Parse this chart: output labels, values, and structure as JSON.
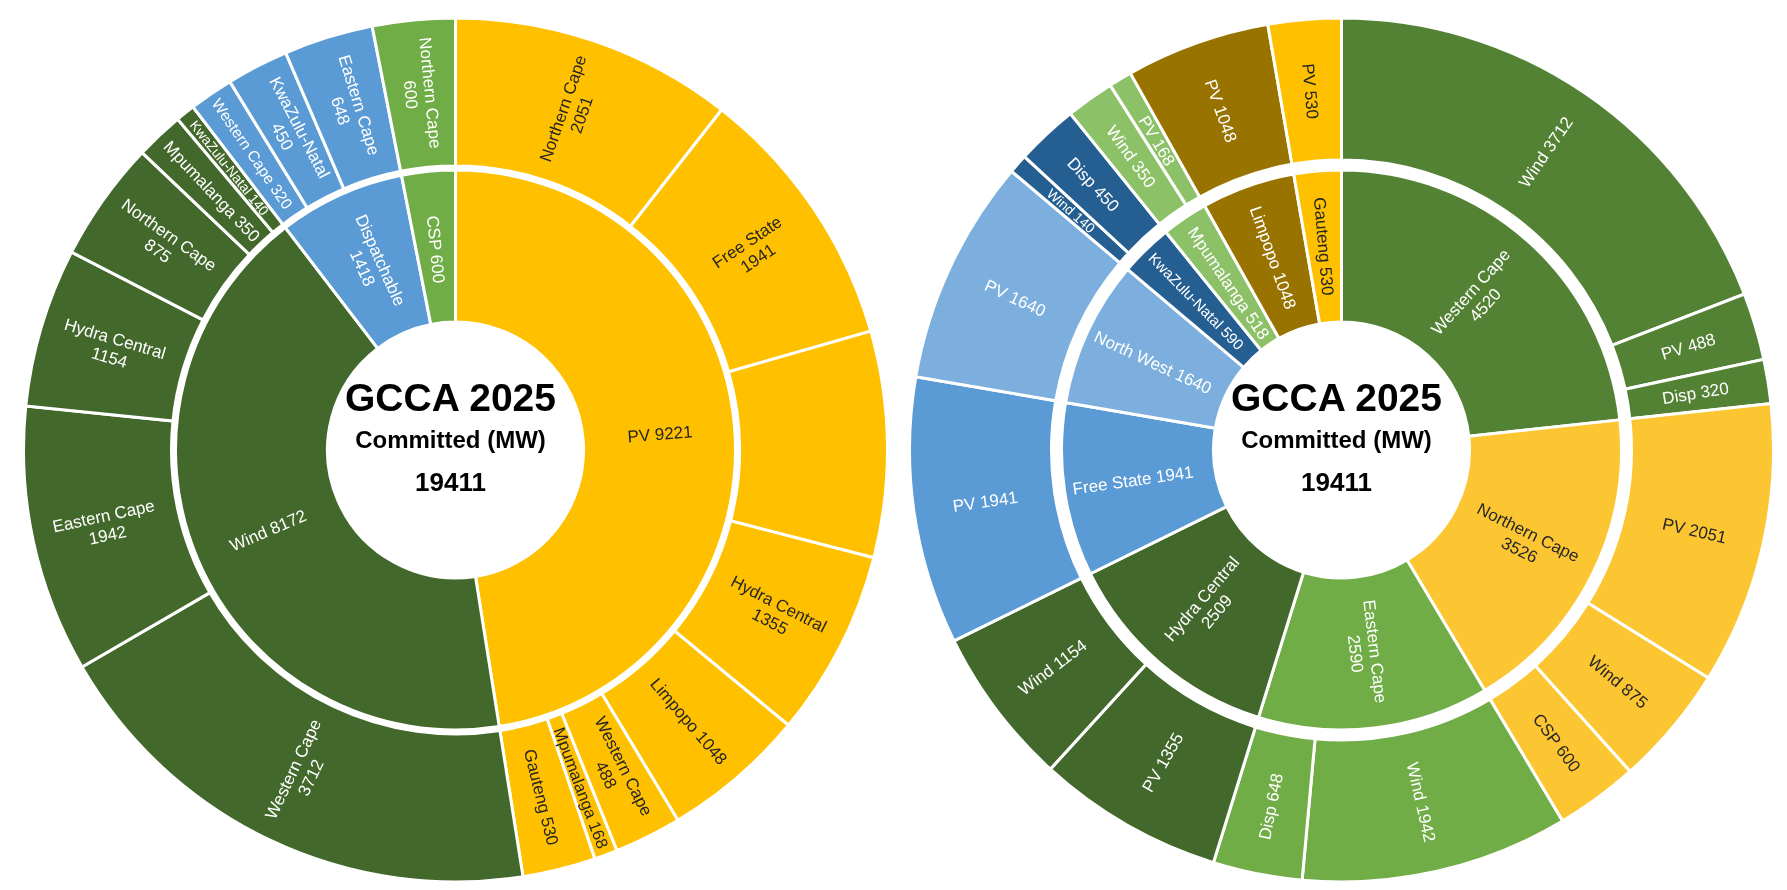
{
  "chart_data": [
    {
      "type": "donut",
      "title": "GCCA 2025",
      "subtitle": "Committed (MW)",
      "annotations": [
        "19411"
      ],
      "categories": [
        "PV",
        "Wind",
        "Dispatchable",
        "CSP"
      ],
      "values": [
        9221,
        8172,
        1418,
        600
      ],
      "value_labels": [
        "9221",
        "8172",
        "1418",
        "600"
      ],
      "colors": [
        "#ffc000",
        "#43682b",
        "#5b9bd5",
        "#70ad47"
      ]
    },
    {
      "type": "donut",
      "categories": [
        "Northern Cape",
        "Free State",
        null,
        "Hydra Central",
        "Limpopo",
        "Western Cape",
        "Mpumalanga",
        "Gauteng",
        "Western Cape",
        "Eastern Cape",
        "Hydra Central",
        "Northern Cape",
        "Mpumalanga",
        "KwaZulu-Natal",
        "Western Cape",
        "KwaZulu-Natal",
        "Eastern Cape",
        "Northern Cape"
      ],
      "values": [
        2051,
        1941,
        1640,
        1355,
        1048,
        488,
        168,
        530,
        3712,
        1942,
        1154,
        875,
        350,
        140,
        320,
        450,
        648,
        600
      ],
      "value_labels": [
        "2051",
        "1941",
        null,
        "1355",
        "1048",
        "488",
        "168",
        "530",
        "3712",
        "1942",
        "1154",
        "875",
        "350",
        "140",
        "320",
        "450",
        "648",
        "600"
      ],
      "colors": [
        "#ffc000",
        "#ffc000",
        "#ffc000",
        "#ffc000",
        "#ffc000",
        "#ffc000",
        "#ffc000",
        "#ffc000",
        "#43682b",
        "#43682b",
        "#43682b",
        "#43682b",
        "#43682b",
        "#43682b",
        "#5b9bd5",
        "#5b9bd5",
        "#5b9bd5",
        "#70ad47"
      ]
    },
    {
      "type": "donut",
      "title": "GCCA 2025",
      "subtitle": "Committed (MW)",
      "annotations": [
        "19411"
      ],
      "categories": [
        "Western Cape",
        "Northern Cape",
        "Eastern Cape",
        "Hydra Central",
        "Free State",
        "North West",
        "KwaZulu-Natal",
        "Mpumalanga",
        "Limpopo",
        "Gauteng"
      ],
      "values": [
        4520,
        3526,
        2590,
        2509,
        1941,
        1640,
        590,
        518,
        1048,
        530
      ],
      "value_labels": [
        "4520",
        "3526",
        "2590",
        "2509",
        "1941",
        "1640",
        "590",
        "518",
        "1048",
        "530"
      ],
      "colors": [
        "#548235",
        "#fcc633",
        "#70ad47",
        "#43682b",
        "#5b9bd5",
        "#7cafdd",
        "#255e91",
        "#8cc168",
        "#997300",
        "#ffc000"
      ]
    },
    {
      "type": "donut",
      "categories": [
        "Wind",
        "PV",
        "Disp",
        "PV",
        "Wind",
        "CSP",
        "Wind",
        "Disp",
        "PV",
        "Wind",
        "PV",
        "PV",
        "Wind",
        "Disp",
        "Wind",
        "PV",
        "PV",
        "PV"
      ],
      "values": [
        3712,
        488,
        320,
        2051,
        875,
        600,
        1942,
        648,
        1355,
        1154,
        1941,
        1640,
        140,
        450,
        350,
        168,
        1048,
        530
      ],
      "value_labels": [
        "3712",
        "488",
        "320",
        "2051",
        "875",
        "600",
        "1942",
        "648",
        "1355",
        "1154",
        "1941",
        "1640",
        "140",
        "450",
        "350",
        "168",
        "1048",
        "530"
      ],
      "colors": [
        "#548235",
        "#548235",
        "#548235",
        "#fcc633",
        "#fcc633",
        "#fcc633",
        "#70ad47",
        "#70ad47",
        "#43682b",
        "#43682b",
        "#5b9bd5",
        "#7cafdd",
        "#255e91",
        "#255e91",
        "#8cc168",
        "#8cc168",
        "#997300",
        "#ffc000"
      ]
    }
  ]
}
